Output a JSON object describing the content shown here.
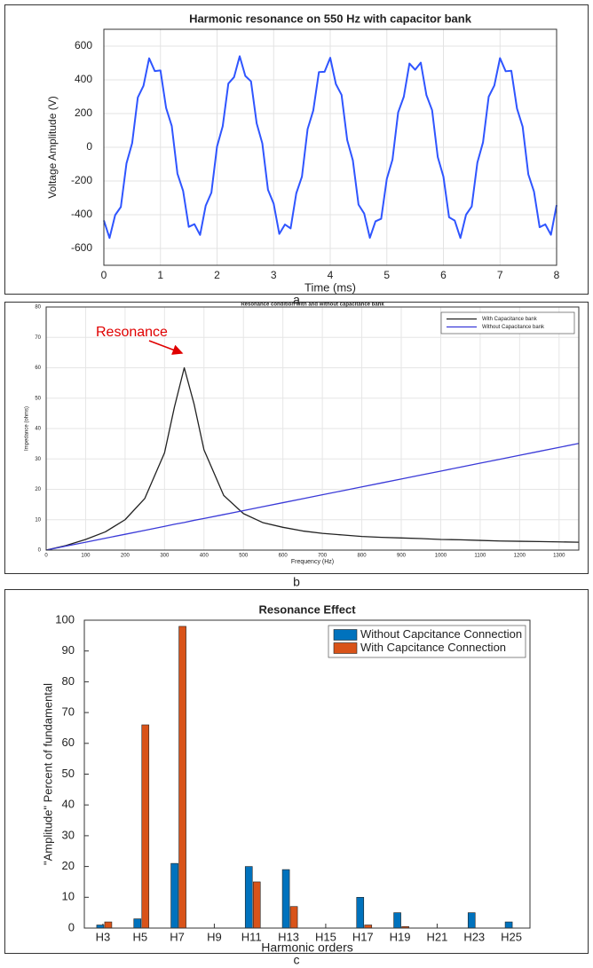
{
  "chart_data": [
    {
      "type": "line",
      "title": "Harmonic resonance on 550 Hz with capacitor bank",
      "xlabel": "Time (ms)",
      "ylabel": "Voltage Amplitude (V)",
      "caption": "a",
      "x": [
        0,
        0.1,
        0.2,
        0.3,
        0.4,
        0.5,
        0.6,
        0.7,
        0.8,
        0.9,
        1,
        1.1,
        1.2,
        1.3,
        1.4,
        1.5,
        1.6,
        1.7,
        1.8,
        1.9,
        2,
        2.1,
        2.2,
        2.3,
        2.4,
        2.5,
        2.6,
        2.7,
        2.8,
        2.9,
        3,
        3.1,
        3.2,
        3.3,
        3.4,
        3.5,
        3.6,
        3.7,
        3.8,
        3.9,
        4,
        4.1,
        4.2,
        4.3,
        4.4,
        4.5,
        4.6,
        4.7,
        4.8,
        4.9,
        5,
        5.1,
        5.2,
        5.3,
        5.4,
        5.5,
        5.6,
        5.7,
        5.8,
        5.9,
        6,
        6.1,
        6.2,
        6.3,
        6.4,
        6.5,
        6.6,
        6.7,
        6.8,
        6.9,
        7,
        7.1,
        7.2,
        7.3,
        7.4,
        7.5,
        7.6,
        7.7,
        7.8,
        7.9,
        8
      ],
      "values": [
        -434,
        -538,
        -402,
        -354,
        -95,
        25,
        296,
        365,
        528,
        452,
        456,
        233,
        126,
        -156,
        -258,
        -472,
        -456,
        -520,
        -346,
        -269,
        5,
        125,
        378,
        416,
        540,
        423,
        391,
        142,
        23,
        -252,
        -334,
        -514,
        -458,
        -481,
        -273,
        -174,
        108,
        218,
        446,
        448,
        531,
        375,
        311,
        43,
        -78,
        -340,
        -393,
        -537,
        -439,
        -424,
        -187,
        -73,
        207,
        300,
        497,
        460,
        502,
        309,
        220,
        -58,
        -174,
        -415,
        -435,
        -538,
        -400,
        -351,
        -91,
        30,
        300,
        367,
        529,
        451,
        454,
        230,
        122,
        -160,
        -262,
        -474,
        -457,
        -519,
        -343
      ],
      "color": "#2f55ff",
      "xlim": [
        0,
        8
      ],
      "ylim": [
        -700,
        700
      ],
      "xticks": [
        0,
        1,
        2,
        3,
        4,
        5,
        6,
        7,
        8
      ],
      "yticks": [
        -600,
        -400,
        -200,
        0,
        200,
        400,
        600
      ],
      "grid": true
    },
    {
      "type": "line",
      "title": "Resonance condition with and without capacitance bank",
      "xlabel": "Frequency (Hz)",
      "ylabel": "Impedance (ohms)",
      "caption": "b",
      "annotation": "Resonance",
      "x": [
        0,
        50,
        100,
        150,
        200,
        250,
        300,
        325,
        350,
        375,
        400,
        450,
        500,
        550,
        600,
        650,
        700,
        750,
        800,
        850,
        900,
        950,
        1000,
        1050,
        1100,
        1150,
        1200,
        1250,
        1300,
        1350
      ],
      "series": [
        {
          "name": "With Capacitance bank",
          "color": "#222222",
          "values": [
            0,
            1.5,
            3.5,
            6,
            10,
            17,
            32,
            47,
            60,
            48,
            33,
            18,
            12,
            9,
            7.5,
            6.3,
            5.5,
            5,
            4.5,
            4.2,
            4,
            3.8,
            3.5,
            3.4,
            3.2,
            3,
            2.9,
            2.8,
            2.7,
            2.6
          ]
        },
        {
          "name": "Without Capacitance bank",
          "color": "#3a3ad8",
          "values": [
            0,
            1.3,
            2.6,
            3.9,
            5.2,
            6.5,
            7.8,
            8.5,
            9.1,
            9.8,
            10.4,
            11.7,
            13,
            14.3,
            15.6,
            16.9,
            18.2,
            19.5,
            20.8,
            22.1,
            23.4,
            24.7,
            26,
            27.3,
            28.6,
            29.9,
            31.2,
            32.5,
            33.8,
            35.1
          ]
        }
      ],
      "xlim": [
        0,
        1350
      ],
      "ylim": [
        0,
        80
      ],
      "xticks": [
        0,
        100,
        200,
        300,
        400,
        500,
        600,
        700,
        800,
        900,
        1000,
        1100,
        1200,
        1300
      ],
      "yticks": [
        0,
        10,
        20,
        30,
        40,
        50,
        60,
        70,
        80
      ],
      "grid": true,
      "legend": "top-right"
    },
    {
      "type": "bar",
      "title": "Resonance Effect",
      "xlabel": "Harmonic orders",
      "ylabel": "\"Amplitude\" Percent of fundamental",
      "caption": "c",
      "categories": [
        "H3",
        "H5",
        "H7",
        "H9",
        "H11",
        "H13",
        "H15",
        "H17",
        "H19",
        "H21",
        "H23",
        "H25"
      ],
      "series": [
        {
          "name": "Without Capcitance Connection",
          "color": "#0072BD",
          "values": [
            1,
            3,
            21,
            0,
            20,
            19,
            0,
            10,
            5,
            0,
            5,
            2
          ]
        },
        {
          "name": "With Capcitance Connection",
          "color": "#D95319",
          "values": [
            2,
            66,
            98,
            0,
            15,
            7,
            0,
            1,
            0.5,
            0,
            0,
            0
          ]
        }
      ],
      "ylim": [
        0,
        100
      ],
      "yticks": [
        0,
        10,
        20,
        30,
        40,
        50,
        60,
        70,
        80,
        90,
        100
      ],
      "grid": false,
      "legend": "top-right"
    }
  ]
}
